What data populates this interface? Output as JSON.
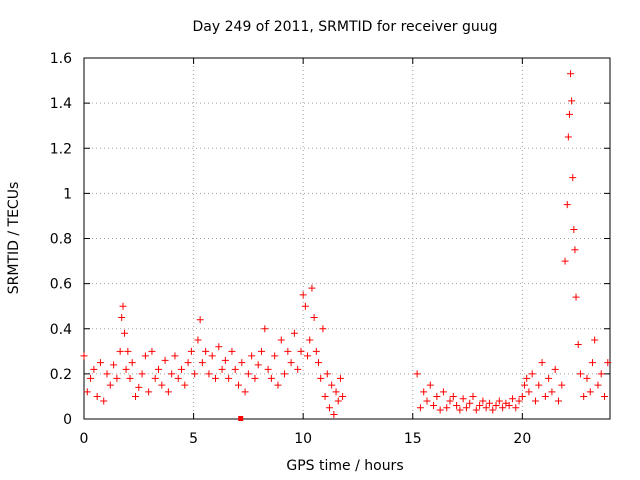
{
  "chart_data": {
    "type": "scatter",
    "title": "Day 249 of 2011, SRMTID for receiver guug",
    "xlabel": "GPS time / hours",
    "ylabel": "SRMTID / TECUs",
    "xlim": [
      0,
      24
    ],
    "ylim": [
      0,
      1.6
    ],
    "x_ticks": [
      0,
      5,
      10,
      15,
      20
    ],
    "x_tick_labels": [
      "0",
      "5",
      "10",
      "15",
      "20"
    ],
    "y_ticks": [
      0,
      0.2,
      0.4,
      0.6,
      0.8,
      1.0,
      1.2,
      1.4,
      1.6
    ],
    "y_tick_labels": [
      "0",
      "0.2",
      "0.4",
      "0.6",
      "0.8",
      "1",
      "1.2",
      "1.4",
      "1.6"
    ],
    "grid": true,
    "marker": "+",
    "marker_color": "#ff0000",
    "series": [
      {
        "name": "SRMTID",
        "x": [
          0.0,
          0.15,
          0.3,
          0.45,
          0.6,
          0.75,
          0.9,
          1.05,
          1.2,
          1.35,
          1.5,
          1.65,
          1.72,
          1.78,
          1.85,
          1.92,
          2.0,
          2.1,
          2.2,
          2.35,
          2.5,
          2.65,
          2.8,
          2.95,
          3.1,
          3.25,
          3.4,
          3.55,
          3.7,
          3.85,
          4.0,
          4.15,
          4.3,
          4.45,
          4.6,
          4.75,
          4.9,
          5.05,
          5.2,
          5.3,
          5.4,
          5.55,
          5.7,
          5.85,
          6.0,
          6.15,
          6.3,
          6.45,
          6.6,
          6.75,
          6.9,
          7.05,
          7.2,
          7.35,
          7.5,
          7.65,
          7.8,
          7.95,
          8.1,
          8.25,
          8.4,
          8.55,
          8.7,
          8.85,
          9.0,
          9.15,
          9.3,
          9.45,
          9.6,
          9.75,
          9.9,
          10.0,
          10.1,
          10.2,
          10.3,
          10.4,
          10.5,
          10.6,
          10.7,
          10.8,
          10.9,
          11.0,
          11.1,
          11.2,
          11.3,
          11.4,
          11.5,
          11.6,
          11.7,
          11.8,
          15.2,
          15.35,
          15.5,
          15.65,
          15.8,
          15.95,
          16.1,
          16.25,
          16.4,
          16.55,
          16.7,
          16.85,
          17.0,
          17.15,
          17.3,
          17.45,
          17.6,
          17.75,
          17.9,
          18.05,
          18.2,
          18.35,
          18.5,
          18.65,
          18.8,
          18.95,
          19.1,
          19.25,
          19.4,
          19.55,
          19.7,
          19.85,
          20.0,
          20.1,
          20.2,
          20.3,
          20.45,
          20.6,
          20.75,
          20.9,
          21.05,
          21.2,
          21.35,
          21.5,
          21.65,
          21.8,
          21.95,
          22.05,
          22.1,
          22.15,
          22.2,
          22.25,
          22.3,
          22.35,
          22.4,
          22.45,
          22.55,
          22.65,
          22.8,
          22.95,
          23.1,
          23.2,
          23.3,
          23.45,
          23.6,
          23.75,
          23.9
        ],
        "y": [
          0.28,
          0.12,
          0.18,
          0.22,
          0.1,
          0.25,
          0.08,
          0.2,
          0.15,
          0.24,
          0.18,
          0.3,
          0.45,
          0.5,
          0.38,
          0.22,
          0.3,
          0.18,
          0.25,
          0.1,
          0.14,
          0.2,
          0.28,
          0.12,
          0.3,
          0.18,
          0.22,
          0.15,
          0.26,
          0.12,
          0.2,
          0.28,
          0.18,
          0.22,
          0.15,
          0.25,
          0.3,
          0.2,
          0.35,
          0.44,
          0.25,
          0.3,
          0.2,
          0.28,
          0.18,
          0.32,
          0.22,
          0.26,
          0.18,
          0.3,
          0.22,
          0.15,
          0.25,
          0.12,
          0.2,
          0.28,
          0.18,
          0.24,
          0.3,
          0.4,
          0.22,
          0.18,
          0.28,
          0.15,
          0.35,
          0.2,
          0.3,
          0.25,
          0.38,
          0.22,
          0.3,
          0.55,
          0.5,
          0.28,
          0.35,
          0.58,
          0.45,
          0.3,
          0.25,
          0.18,
          0.4,
          0.1,
          0.2,
          0.05,
          0.15,
          0.02,
          0.12,
          0.08,
          0.18,
          0.1,
          0.2,
          0.05,
          0.12,
          0.08,
          0.15,
          0.06,
          0.1,
          0.04,
          0.12,
          0.05,
          0.08,
          0.1,
          0.06,
          0.04,
          0.09,
          0.05,
          0.07,
          0.1,
          0.04,
          0.06,
          0.08,
          0.05,
          0.07,
          0.04,
          0.06,
          0.08,
          0.05,
          0.07,
          0.06,
          0.09,
          0.05,
          0.08,
          0.1,
          0.15,
          0.18,
          0.12,
          0.2,
          0.08,
          0.15,
          0.25,
          0.1,
          0.18,
          0.12,
          0.22,
          0.08,
          0.15,
          0.7,
          0.95,
          1.25,
          1.35,
          1.53,
          1.41,
          1.07,
          0.84,
          0.75,
          0.54,
          0.33,
          0.2,
          0.1,
          0.18,
          0.12,
          0.25,
          0.35,
          0.15,
          0.2,
          0.1,
          0.25
        ]
      }
    ],
    "isolated_square_marker": {
      "x": 7.15,
      "y": 0.0
    }
  }
}
